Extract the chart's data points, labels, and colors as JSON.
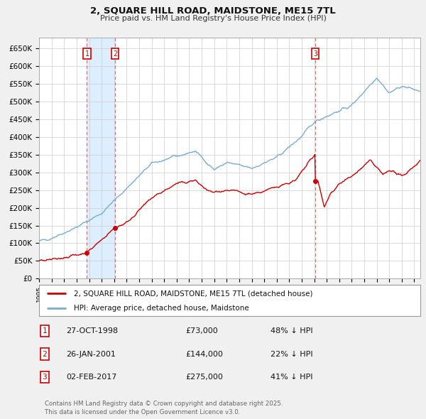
{
  "title": "2, SQUARE HILL ROAD, MAIDSTONE, ME15 7TL",
  "subtitle": "Price paid vs. HM Land Registry's House Price Index (HPI)",
  "background_color": "#f0f0f0",
  "plot_bg_color": "#ffffff",
  "ylim": [
    0,
    680000
  ],
  "yticks": [
    0,
    50000,
    100000,
    150000,
    200000,
    250000,
    300000,
    350000,
    400000,
    450000,
    500000,
    550000,
    600000,
    650000
  ],
  "ytick_labels": [
    "£0",
    "£50K",
    "£100K",
    "£150K",
    "£200K",
    "£250K",
    "£300K",
    "£350K",
    "£400K",
    "£450K",
    "£500K",
    "£550K",
    "£600K",
    "£650K"
  ],
  "xlim_start": 1995.0,
  "xlim_end": 2025.5,
  "sale_points": [
    {
      "num": 1,
      "year": 1998.82,
      "price": 73000,
      "date": "27-OCT-1998",
      "label": "£73,000",
      "pct": "48% ↓ HPI"
    },
    {
      "num": 2,
      "year": 2001.07,
      "price": 144000,
      "date": "26-JAN-2001",
      "label": "£144,000",
      "pct": "22% ↓ HPI"
    },
    {
      "num": 3,
      "year": 2017.09,
      "price": 275000,
      "date": "02-FEB-2017",
      "label": "£275,000",
      "pct": "41% ↓ HPI"
    }
  ],
  "legend_line1": "2, SQUARE HILL ROAD, MAIDSTONE, ME15 7TL (detached house)",
  "legend_line2": "HPI: Average price, detached house, Maidstone",
  "footnote": "Contains HM Land Registry data © Crown copyright and database right 2025.\nThis data is licensed under the Open Government Licence v3.0.",
  "red_color": "#cc0000",
  "blue_color": "#7aadcf",
  "grid_color": "#cccccc",
  "sale_box_color": "#cc0000",
  "dashed_line_color": "#cc6666",
  "shade_color": "#ddeeff"
}
